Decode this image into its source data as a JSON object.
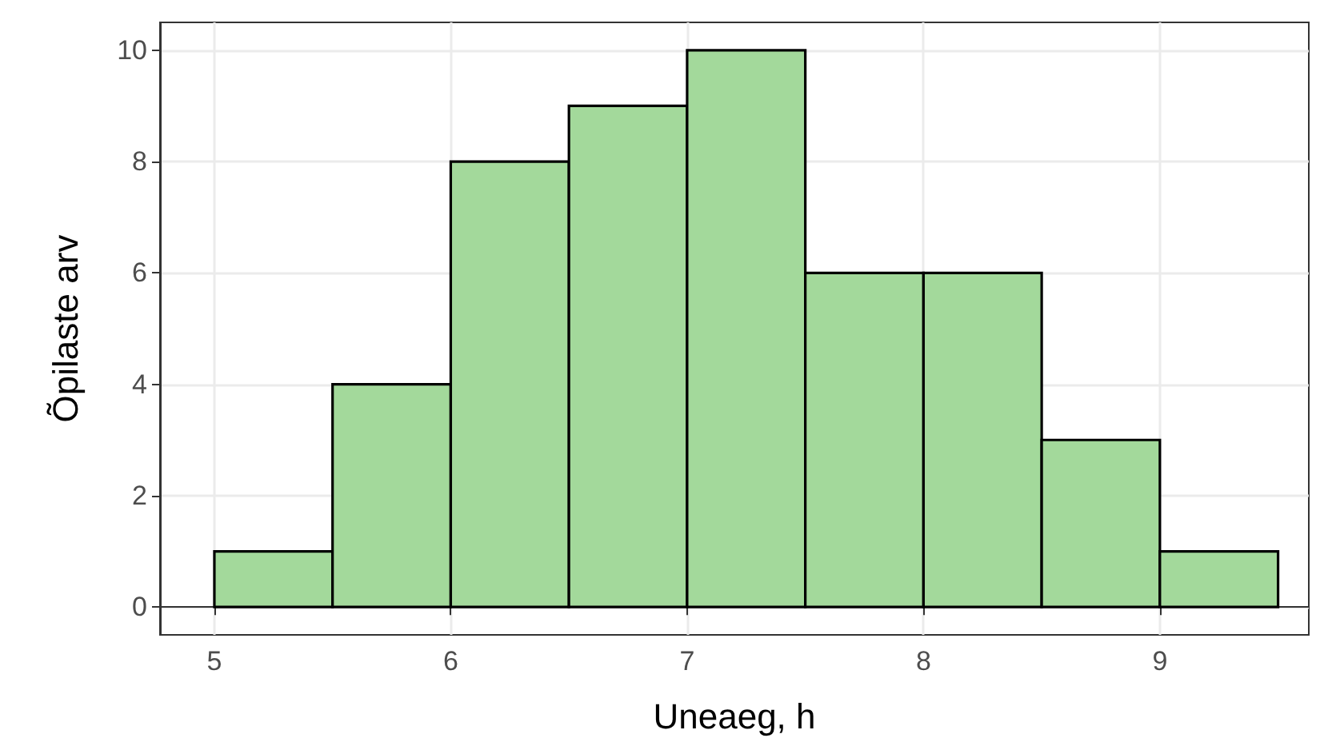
{
  "chart_data": {
    "type": "histogram",
    "xlabel": "Uneaeg, h",
    "ylabel": "Õpilaste arv",
    "bins": [
      5,
      5.5,
      6,
      6.5,
      7,
      7.5,
      8,
      8.5,
      9,
      9.5
    ],
    "values": [
      1,
      4,
      8,
      9,
      10,
      6,
      6,
      3,
      1
    ],
    "color": "#a3d99b",
    "xlim": [
      4.77,
      9.63
    ],
    "xticks": [
      5,
      6,
      7,
      8,
      9
    ],
    "ylim": [
      -0.5,
      10.5
    ],
    "yticks": [
      0,
      2,
      4,
      6,
      8,
      10
    ],
    "grid": true
  }
}
